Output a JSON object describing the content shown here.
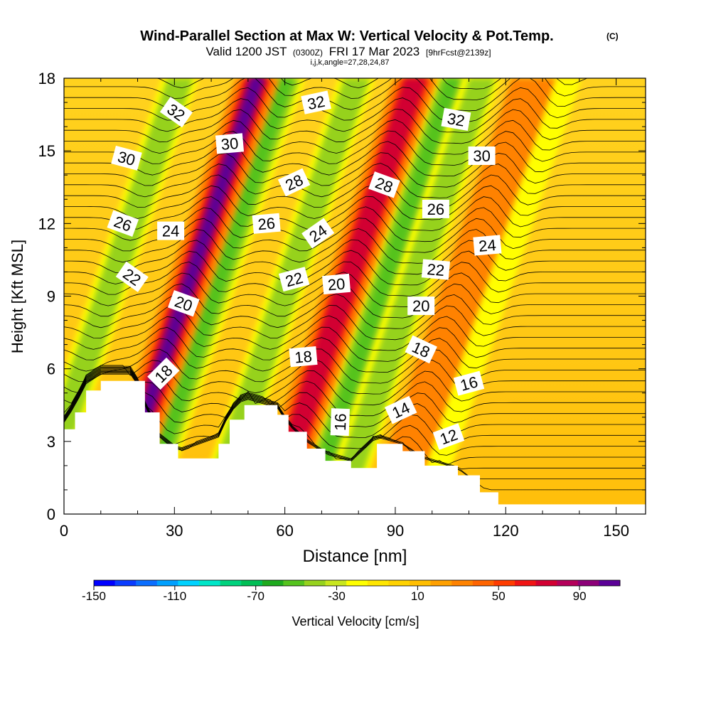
{
  "header": {
    "title": "Wind-Parallel Section at Max W: Vertical Velocity & Pot.Temp.",
    "copyright": "(C)",
    "valid_prefix": "Valid 1200 JST",
    "valid_zulu": "(0300Z)",
    "valid_date": "FRI 17 Mar 2023",
    "forecast": "[9hrFcst@2139z]",
    "indices": "i,j,k,angle=27,28,24,87"
  },
  "chart_data": {
    "type": "heatmap",
    "xlabel": "Distance [nm]",
    "ylabel": "Height [Kft MSL]",
    "xlim": [
      0,
      158
    ],
    "ylim": [
      0,
      18
    ],
    "x_ticks": [
      0,
      30,
      60,
      90,
      120,
      150
    ],
    "y_ticks": [
      0,
      3,
      6,
      9,
      12,
      15,
      18
    ],
    "colorbar": {
      "label": "Vertical Velocity [cm/s]",
      "range": [
        -150,
        110
      ],
      "step": 10,
      "tick_labels": [
        "-150",
        "-110",
        "-70",
        "-30",
        "10",
        "50",
        "90"
      ],
      "colors": [
        "#0000ff",
        "#0a3cff",
        "#0a6eff",
        "#00a0ff",
        "#00d2ff",
        "#00e6c8",
        "#00d27d",
        "#00be55",
        "#1eaa1e",
        "#55c31e",
        "#96d21e",
        "#c8e61e",
        "#ffff00",
        "#ffe600",
        "#ffd200",
        "#ffbe00",
        "#ffa000",
        "#ff8200",
        "#ff6400",
        "#ff3c00",
        "#f01414",
        "#d20032",
        "#b4005a",
        "#8c0078",
        "#5a0096"
      ]
    },
    "updraft_bands": [
      {
        "center_nm": 24,
        "peak_cm_s": 110
      },
      {
        "center_nm": 67,
        "peak_cm_s": 65
      },
      {
        "center_nm": 99,
        "peak_cm_s": 35
      }
    ],
    "downdraft_bands": [
      {
        "center_nm": 3,
        "peak_cm_s": -45
      },
      {
        "center_nm": 32,
        "peak_cm_s": -60
      },
      {
        "center_nm": 51,
        "peak_cm_s": -50
      },
      {
        "center_nm": 77,
        "peak_cm_s": -55
      },
      {
        "center_nm": 85,
        "peak_cm_s": -40
      },
      {
        "center_nm": 107,
        "peak_cm_s": -30
      }
    ],
    "terrain": [
      {
        "x": 0,
        "y": 3.5
      },
      {
        "x": 3,
        "y": 4.2
      },
      {
        "x": 6,
        "y": 5.1
      },
      {
        "x": 10,
        "y": 5.5
      },
      {
        "x": 19,
        "y": 5.5
      },
      {
        "x": 22,
        "y": 4.2
      },
      {
        "x": 26,
        "y": 2.9
      },
      {
        "x": 31,
        "y": 2.3
      },
      {
        "x": 42,
        "y": 2.9
      },
      {
        "x": 45,
        "y": 3.9
      },
      {
        "x": 49,
        "y": 4.5
      },
      {
        "x": 58,
        "y": 4.1
      },
      {
        "x": 61,
        "y": 3.4
      },
      {
        "x": 66,
        "y": 2.7
      },
      {
        "x": 71,
        "y": 2.2
      },
      {
        "x": 78,
        "y": 1.9
      },
      {
        "x": 85,
        "y": 2.9
      },
      {
        "x": 92,
        "y": 2.6
      },
      {
        "x": 98,
        "y": 2.0
      },
      {
        "x": 107,
        "y": 1.6
      },
      {
        "x": 113,
        "y": 0.9
      },
      {
        "x": 118,
        "y": 0.4
      },
      {
        "x": 158,
        "y": 0.3
      }
    ],
    "contour_labels": [
      {
        "text": "32",
        "x": 30.5,
        "y": 16.6,
        "angle": 35
      },
      {
        "text": "32",
        "x": 68.5,
        "y": 17.0,
        "angle": -12
      },
      {
        "text": "32",
        "x": 106.5,
        "y": 16.3,
        "angle": 10
      },
      {
        "text": "30",
        "x": 17.0,
        "y": 14.7,
        "angle": 15
      },
      {
        "text": "30",
        "x": 45.0,
        "y": 15.3,
        "angle": -5
      },
      {
        "text": "30",
        "x": 113.5,
        "y": 14.8,
        "angle": 0
      },
      {
        "text": "28",
        "x": 62.5,
        "y": 13.7,
        "angle": -25
      },
      {
        "text": "28",
        "x": 87.0,
        "y": 13.6,
        "angle": 20
      },
      {
        "text": "26",
        "x": 16.0,
        "y": 12.0,
        "angle": 20
      },
      {
        "text": "26",
        "x": 55.0,
        "y": 12.0,
        "angle": -5
      },
      {
        "text": "26",
        "x": 101.0,
        "y": 12.6,
        "angle": 0
      },
      {
        "text": "24",
        "x": 29.0,
        "y": 11.7,
        "angle": 0
      },
      {
        "text": "24",
        "x": 69.0,
        "y": 11.6,
        "angle": -35
      },
      {
        "text": "24",
        "x": 115.0,
        "y": 11.1,
        "angle": -5
      },
      {
        "text": "22",
        "x": 18.5,
        "y": 9.8,
        "angle": 35
      },
      {
        "text": "22",
        "x": 62.5,
        "y": 9.7,
        "angle": -15
      },
      {
        "text": "22",
        "x": 101.0,
        "y": 10.1,
        "angle": 5
      },
      {
        "text": "20",
        "x": 32.5,
        "y": 8.7,
        "angle": 20
      },
      {
        "text": "20",
        "x": 74.0,
        "y": 9.5,
        "angle": -5
      },
      {
        "text": "20",
        "x": 97.0,
        "y": 8.6,
        "angle": 0
      },
      {
        "text": "18",
        "x": 27.0,
        "y": 5.8,
        "angle": -45
      },
      {
        "text": "18",
        "x": 65.0,
        "y": 6.5,
        "angle": -5
      },
      {
        "text": "18",
        "x": 97.0,
        "y": 6.8,
        "angle": 25
      },
      {
        "text": "16",
        "x": 75.0,
        "y": 3.8,
        "angle": -88
      },
      {
        "text": "16",
        "x": 110.0,
        "y": 5.4,
        "angle": -15
      },
      {
        "text": "14",
        "x": 91.5,
        "y": 4.3,
        "angle": -25
      },
      {
        "text": "12",
        "x": 104.5,
        "y": 3.2,
        "angle": -20
      }
    ]
  }
}
